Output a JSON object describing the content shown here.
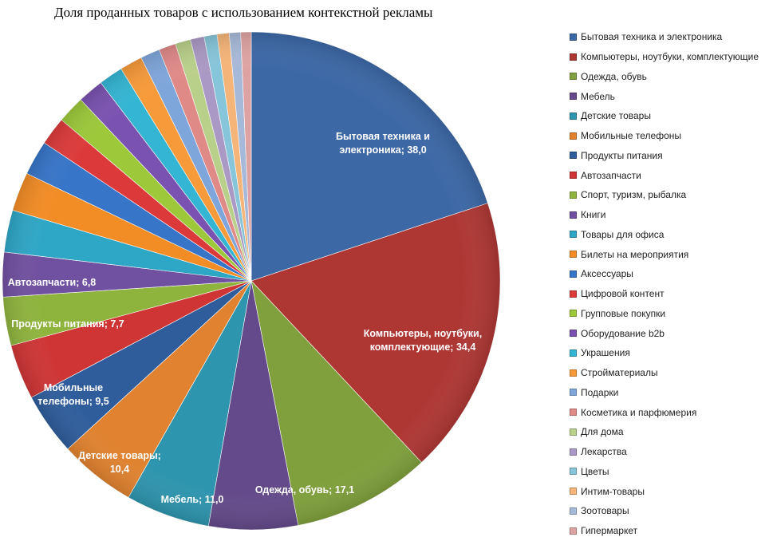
{
  "chart_data": {
    "type": "pie",
    "title": "Доля проданных товаров с использованием контекстной рекламы",
    "legend_position": "right",
    "slices": [
      {
        "name": "Бытовая техника и электроника",
        "value": 38.0,
        "label_lines": [
          "Бытовая техника и",
          "электроника; 38,0"
        ],
        "color": "#3c68a6"
      },
      {
        "name": "Компьютеры, ноутбуки, комплектующие",
        "value": 34.4,
        "label_lines": [
          "Компьютеры, ноутбуки,",
          "комплектующие; 34,4"
        ],
        "color": "#ae3734"
      },
      {
        "name": "Одежда, обувь",
        "value": 17.1,
        "label_lines": [
          "Одежда, обувь; 17,1"
        ],
        "color": "#7fa03c"
      },
      {
        "name": "Мебель",
        "value": 11.0,
        "label_lines": [
          "Мебель; 11,0"
        ],
        "color": "#644a8a"
      },
      {
        "name": "Детские товары",
        "value": 10.4,
        "label_lines": [
          "Детские товары;",
          "10,4"
        ],
        "color": "#2e95ae"
      },
      {
        "name": "Мобильные телефоны",
        "value": 9.5,
        "label_lines": [
          "Мобильные",
          "телефоны; 9,5"
        ],
        "color": "#e0822f"
      },
      {
        "name": "Продукты питания",
        "value": 7.7,
        "label_lines": [
          "Продукты питания; 7,7"
        ],
        "color": "#2f5d9c"
      },
      {
        "name": "Автозапчасти",
        "value": 6.8,
        "label_lines": [
          "Автозапчасти; 6,8"
        ],
        "color": "#cf3535"
      },
      {
        "name": "Спорт, туризм, рыбалка",
        "value": 6.0,
        "label_lines": [],
        "color": "#8fb43e"
      },
      {
        "name": "Книги",
        "value": 5.5,
        "label_lines": [],
        "color": "#7050a0"
      },
      {
        "name": "Товары для офиса",
        "value": 5.2,
        "label_lines": [],
        "color": "#2ea6c6"
      },
      {
        "name": "Билеты на мероприятия",
        "value": 4.8,
        "label_lines": [],
        "color": "#f28c25"
      },
      {
        "name": "Аксессуары",
        "value": 4.3,
        "label_lines": [],
        "color": "#3775c8"
      },
      {
        "name": "Цифровой контент",
        "value": 3.5,
        "label_lines": [],
        "color": "#dc3a3a"
      },
      {
        "name": "Групповые покупки",
        "value": 3.4,
        "label_lines": [],
        "color": "#9cc83a"
      },
      {
        "name": "Оборудование b2b",
        "value": 3.2,
        "label_lines": [],
        "color": "#7a52b0"
      },
      {
        "name": "Украшения",
        "value": 3.0,
        "label_lines": [],
        "color": "#33b5d3"
      },
      {
        "name": "Стройматериалы",
        "value": 2.8,
        "label_lines": [],
        "color": "#f79a3a"
      },
      {
        "name": "Подарки",
        "value": 2.4,
        "label_lines": [],
        "color": "#7fa6da"
      },
      {
        "name": "Косметика и парфюмерия",
        "value": 2.1,
        "label_lines": [],
        "color": "#e08a88"
      },
      {
        "name": "Для дома",
        "value": 1.9,
        "label_lines": [],
        "color": "#b9d08a"
      },
      {
        "name": "Лекарства",
        "value": 1.7,
        "label_lines": [],
        "color": "#a999c4"
      },
      {
        "name": "Цветы",
        "value": 1.6,
        "label_lines": [],
        "color": "#86c5da"
      },
      {
        "name": "Интим-товары",
        "value": 1.5,
        "label_lines": [],
        "color": "#f5b478"
      },
      {
        "name": "Зоотовары",
        "value": 1.4,
        "label_lines": [],
        "color": "#a7b9d8"
      },
      {
        "name": "Гипермаркет",
        "value": 1.3,
        "label_lines": [],
        "color": "#dda3a2"
      }
    ]
  }
}
